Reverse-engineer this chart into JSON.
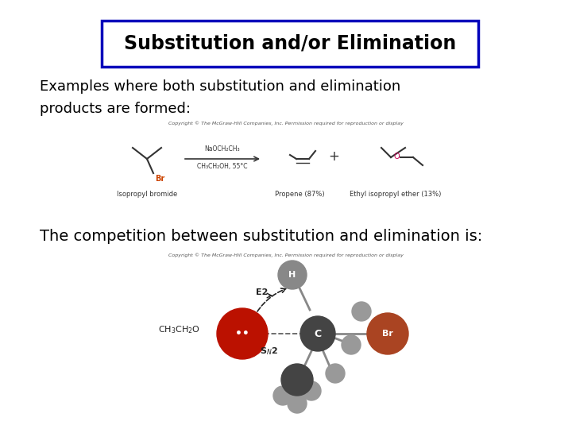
{
  "title": "Substitution and/or Elimination",
  "subtitle_line1": "Examples where both substitution and elimination",
  "subtitle_line2": "products are formed:",
  "competition_text": "The competition between substitution and elimination is:",
  "bg_color": "#ffffff",
  "title_box_border_color": "#0000bb",
  "title_fontsize": 17,
  "subtitle_fontsize": 13,
  "competition_fontsize": 14,
  "copyright_text": "Copyright © The McGraw-Hill Companies, Inc. Permission required for reproduction or display"
}
